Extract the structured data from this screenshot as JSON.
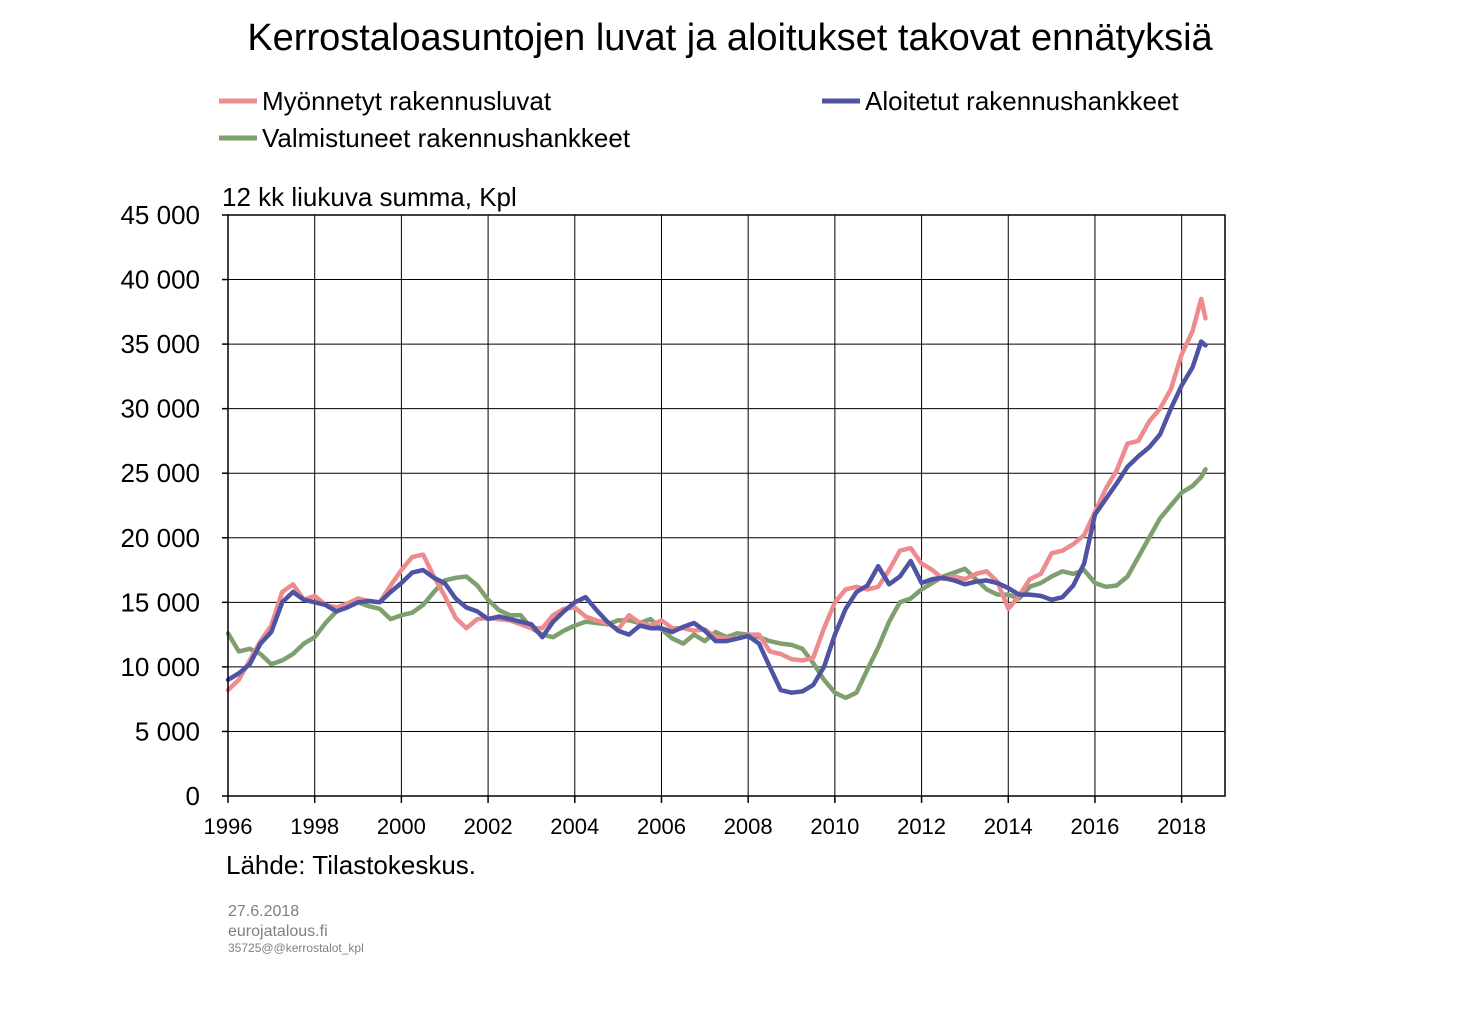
{
  "chart_data": {
    "type": "line",
    "title": "Kerrostaloasuntojen luvat ja aloitukset takovat ennätyksiä",
    "unit_label": "12 kk liukuva summa, Kpl",
    "source": "Lähde: Tilastokeskus.",
    "xlim": [
      1996,
      2019
    ],
    "ylim": [
      0,
      45000
    ],
    "x_ticks": [
      1996,
      1998,
      2000,
      2002,
      2004,
      2006,
      2008,
      2010,
      2012,
      2014,
      2016,
      2018
    ],
    "x_tick_labels": [
      "1996",
      "1998",
      "2000",
      "2002",
      "2004",
      "2006",
      "2008",
      "2010",
      "2012",
      "2014",
      "2016",
      "2018"
    ],
    "y_ticks": [
      0,
      5000,
      10000,
      15000,
      20000,
      25000,
      30000,
      35000,
      40000,
      45000
    ],
    "y_tick_labels": [
      "0",
      "5 000",
      "10 000",
      "15 000",
      "20 000",
      "25 000",
      "30 000",
      "35 000",
      "40 000",
      "45 000"
    ],
    "grid": true,
    "legend_position": "top",
    "series": [
      {
        "name": "Myönnetyt rakennusluvat",
        "color": "#ED8B8E",
        "points": [
          [
            1996.0,
            8200
          ],
          [
            1996.25,
            9000
          ],
          [
            1996.5,
            10500
          ],
          [
            1996.75,
            12000
          ],
          [
            1997.0,
            13200
          ],
          [
            1997.25,
            15800
          ],
          [
            1997.5,
            16400
          ],
          [
            1997.75,
            15200
          ],
          [
            1998.0,
            15500
          ],
          [
            1998.25,
            14800
          ],
          [
            1998.5,
            14600
          ],
          [
            1998.75,
            14900
          ],
          [
            1999.0,
            15300
          ],
          [
            1999.25,
            15100
          ],
          [
            1999.5,
            15000
          ],
          [
            1999.75,
            16300
          ],
          [
            2000.0,
            17500
          ],
          [
            2000.25,
            18500
          ],
          [
            2000.5,
            18700
          ],
          [
            2000.75,
            17000
          ],
          [
            2001.0,
            15500
          ],
          [
            2001.25,
            13800
          ],
          [
            2001.5,
            13000
          ],
          [
            2001.75,
            13700
          ],
          [
            2002.0,
            13800
          ],
          [
            2002.25,
            13700
          ],
          [
            2002.5,
            13600
          ],
          [
            2002.75,
            13300
          ],
          [
            2003.0,
            13000
          ],
          [
            2003.25,
            13000
          ],
          [
            2003.5,
            14000
          ],
          [
            2003.75,
            14500
          ],
          [
            2004.0,
            14600
          ],
          [
            2004.25,
            13900
          ],
          [
            2004.5,
            13600
          ],
          [
            2004.75,
            13400
          ],
          [
            2005.0,
            12900
          ],
          [
            2005.25,
            14000
          ],
          [
            2005.5,
            13400
          ],
          [
            2005.75,
            13200
          ],
          [
            2006.0,
            13600
          ],
          [
            2006.25,
            13000
          ],
          [
            2006.5,
            13000
          ],
          [
            2006.75,
            12800
          ],
          [
            2007.0,
            12900
          ],
          [
            2007.25,
            12300
          ],
          [
            2007.5,
            12200
          ],
          [
            2007.75,
            12200
          ],
          [
            2008.0,
            12500
          ],
          [
            2008.25,
            12500
          ],
          [
            2008.5,
            11200
          ],
          [
            2008.75,
            11000
          ],
          [
            2009.0,
            10600
          ],
          [
            2009.25,
            10500
          ],
          [
            2009.5,
            10700
          ],
          [
            2009.75,
            13000
          ],
          [
            2010.0,
            15000
          ],
          [
            2010.25,
            16000
          ],
          [
            2010.5,
            16200
          ],
          [
            2010.75,
            16000
          ],
          [
            2011.0,
            16200
          ],
          [
            2011.25,
            17500
          ],
          [
            2011.5,
            19000
          ],
          [
            2011.75,
            19200
          ],
          [
            2012.0,
            18000
          ],
          [
            2012.25,
            17500
          ],
          [
            2012.5,
            16800
          ],
          [
            2012.75,
            17000
          ],
          [
            2013.0,
            16800
          ],
          [
            2013.25,
            17200
          ],
          [
            2013.5,
            17400
          ],
          [
            2013.75,
            16600
          ],
          [
            2014.0,
            14500
          ],
          [
            2014.25,
            15500
          ],
          [
            2014.5,
            16800
          ],
          [
            2014.75,
            17200
          ],
          [
            2015.0,
            18800
          ],
          [
            2015.25,
            19000
          ],
          [
            2015.5,
            19500
          ],
          [
            2015.75,
            20200
          ],
          [
            2016.0,
            22000
          ],
          [
            2016.25,
            23800
          ],
          [
            2016.5,
            25200
          ],
          [
            2016.75,
            27300
          ],
          [
            2017.0,
            27500
          ],
          [
            2017.25,
            29000
          ],
          [
            2017.5,
            30000
          ],
          [
            2017.75,
            31500
          ],
          [
            2018.0,
            34200
          ],
          [
            2018.25,
            36000
          ],
          [
            2018.45,
            38500
          ],
          [
            2018.55,
            37000
          ]
        ]
      },
      {
        "name": "Aloitetut rakennushankkeet",
        "color": "#4E53A3",
        "points": [
          [
            1996.0,
            9000
          ],
          [
            1996.25,
            9500
          ],
          [
            1996.5,
            10200
          ],
          [
            1996.75,
            11800
          ],
          [
            1997.0,
            12700
          ],
          [
            1997.25,
            15000
          ],
          [
            1997.5,
            15800
          ],
          [
            1997.75,
            15200
          ],
          [
            1998.0,
            15000
          ],
          [
            1998.25,
            14800
          ],
          [
            1998.5,
            14300
          ],
          [
            1998.75,
            14600
          ],
          [
            1999.0,
            15000
          ],
          [
            1999.25,
            15100
          ],
          [
            1999.5,
            15000
          ],
          [
            1999.75,
            15800
          ],
          [
            2000.0,
            16500
          ],
          [
            2000.25,
            17300
          ],
          [
            2000.5,
            17500
          ],
          [
            2000.75,
            16900
          ],
          [
            2001.0,
            16500
          ],
          [
            2001.25,
            15300
          ],
          [
            2001.5,
            14600
          ],
          [
            2001.75,
            14300
          ],
          [
            2002.0,
            13700
          ],
          [
            2002.25,
            13900
          ],
          [
            2002.5,
            13700
          ],
          [
            2002.75,
            13500
          ],
          [
            2003.0,
            13300
          ],
          [
            2003.25,
            12300
          ],
          [
            2003.5,
            13500
          ],
          [
            2003.75,
            14300
          ],
          [
            2004.0,
            15000
          ],
          [
            2004.25,
            15400
          ],
          [
            2004.5,
            14400
          ],
          [
            2004.75,
            13500
          ],
          [
            2005.0,
            12800
          ],
          [
            2005.25,
            12500
          ],
          [
            2005.5,
            13200
          ],
          [
            2005.75,
            13000
          ],
          [
            2006.0,
            13000
          ],
          [
            2006.25,
            12700
          ],
          [
            2006.5,
            13100
          ],
          [
            2006.75,
            13400
          ],
          [
            2007.0,
            12800
          ],
          [
            2007.25,
            12000
          ],
          [
            2007.5,
            12000
          ],
          [
            2007.75,
            12200
          ],
          [
            2008.0,
            12400
          ],
          [
            2008.25,
            11800
          ],
          [
            2008.5,
            10000
          ],
          [
            2008.75,
            8200
          ],
          [
            2009.0,
            8000
          ],
          [
            2009.25,
            8100
          ],
          [
            2009.5,
            8600
          ],
          [
            2009.75,
            10000
          ],
          [
            2010.0,
            12500
          ],
          [
            2010.25,
            14500
          ],
          [
            2010.5,
            15800
          ],
          [
            2010.75,
            16300
          ],
          [
            2011.0,
            17800
          ],
          [
            2011.25,
            16400
          ],
          [
            2011.5,
            17000
          ],
          [
            2011.75,
            18200
          ],
          [
            2012.0,
            16500
          ],
          [
            2012.25,
            16800
          ],
          [
            2012.5,
            16900
          ],
          [
            2012.75,
            16700
          ],
          [
            2013.0,
            16400
          ],
          [
            2013.25,
            16600
          ],
          [
            2013.5,
            16700
          ],
          [
            2013.75,
            16500
          ],
          [
            2014.0,
            16100
          ],
          [
            2014.25,
            15600
          ],
          [
            2014.5,
            15600
          ],
          [
            2014.75,
            15500
          ],
          [
            2015.0,
            15200
          ],
          [
            2015.25,
            15400
          ],
          [
            2015.5,
            16300
          ],
          [
            2015.75,
            18000
          ],
          [
            2016.0,
            21800
          ],
          [
            2016.25,
            23000
          ],
          [
            2016.5,
            24200
          ],
          [
            2016.75,
            25500
          ],
          [
            2017.0,
            26300
          ],
          [
            2017.25,
            27000
          ],
          [
            2017.5,
            28000
          ],
          [
            2017.75,
            30000
          ],
          [
            2018.0,
            31800
          ],
          [
            2018.25,
            33200
          ],
          [
            2018.45,
            35200
          ],
          [
            2018.55,
            34900
          ]
        ]
      },
      {
        "name": "Valmistuneet rakennushankkeet",
        "color": "#7F9F6E",
        "points": [
          [
            1996.0,
            12600
          ],
          [
            1996.25,
            11200
          ],
          [
            1996.5,
            11400
          ],
          [
            1996.75,
            11000
          ],
          [
            1997.0,
            10200
          ],
          [
            1997.25,
            10500
          ],
          [
            1997.5,
            11000
          ],
          [
            1997.75,
            11800
          ],
          [
            1998.0,
            12300
          ],
          [
            1998.25,
            13400
          ],
          [
            1998.5,
            14300
          ],
          [
            1998.75,
            14800
          ],
          [
            1999.0,
            15000
          ],
          [
            1999.25,
            14700
          ],
          [
            1999.5,
            14500
          ],
          [
            1999.75,
            13700
          ],
          [
            2000.0,
            14000
          ],
          [
            2000.25,
            14200
          ],
          [
            2000.5,
            14800
          ],
          [
            2000.75,
            15800
          ],
          [
            2001.0,
            16700
          ],
          [
            2001.25,
            16900
          ],
          [
            2001.5,
            17000
          ],
          [
            2001.75,
            16300
          ],
          [
            2002.0,
            15200
          ],
          [
            2002.25,
            14400
          ],
          [
            2002.5,
            14000
          ],
          [
            2002.75,
            14000
          ],
          [
            2003.0,
            13000
          ],
          [
            2003.25,
            12500
          ],
          [
            2003.5,
            12300
          ],
          [
            2003.75,
            12800
          ],
          [
            2004.0,
            13200
          ],
          [
            2004.25,
            13500
          ],
          [
            2004.5,
            13400
          ],
          [
            2004.75,
            13300
          ],
          [
            2005.0,
            13600
          ],
          [
            2005.25,
            13600
          ],
          [
            2005.5,
            13400
          ],
          [
            2005.75,
            13700
          ],
          [
            2006.0,
            12900
          ],
          [
            2006.25,
            12200
          ],
          [
            2006.5,
            11800
          ],
          [
            2006.75,
            12500
          ],
          [
            2007.0,
            12000
          ],
          [
            2007.25,
            12700
          ],
          [
            2007.5,
            12300
          ],
          [
            2007.75,
            12600
          ],
          [
            2008.0,
            12500
          ],
          [
            2008.25,
            12300
          ],
          [
            2008.5,
            12000
          ],
          [
            2008.75,
            11800
          ],
          [
            2009.0,
            11700
          ],
          [
            2009.25,
            11400
          ],
          [
            2009.5,
            10300
          ],
          [
            2009.75,
            9000
          ],
          [
            2010.0,
            8000
          ],
          [
            2010.25,
            7600
          ],
          [
            2010.5,
            8000
          ],
          [
            2010.75,
            9800
          ],
          [
            2011.0,
            11500
          ],
          [
            2011.25,
            13500
          ],
          [
            2011.5,
            15000
          ],
          [
            2011.75,
            15300
          ],
          [
            2012.0,
            16000
          ],
          [
            2012.25,
            16500
          ],
          [
            2012.5,
            17000
          ],
          [
            2012.75,
            17300
          ],
          [
            2013.0,
            17600
          ],
          [
            2013.25,
            16800
          ],
          [
            2013.5,
            16000
          ],
          [
            2013.75,
            15600
          ],
          [
            2014.0,
            15600
          ],
          [
            2014.25,
            15300
          ],
          [
            2014.5,
            16200
          ],
          [
            2014.75,
            16500
          ],
          [
            2015.0,
            17000
          ],
          [
            2015.25,
            17400
          ],
          [
            2015.5,
            17200
          ],
          [
            2015.75,
            17500
          ],
          [
            2016.0,
            16500
          ],
          [
            2016.25,
            16200
          ],
          [
            2016.5,
            16300
          ],
          [
            2016.75,
            17000
          ],
          [
            2017.0,
            18500
          ],
          [
            2017.25,
            20000
          ],
          [
            2017.5,
            21500
          ],
          [
            2017.75,
            22500
          ],
          [
            2018.0,
            23500
          ],
          [
            2018.25,
            24000
          ],
          [
            2018.45,
            24700
          ],
          [
            2018.55,
            25300
          ]
        ]
      }
    ]
  },
  "footer": {
    "date": "27.6.2018",
    "site": "eurojatalous.fi",
    "code": "35725@@kerrostalot_kpl"
  }
}
